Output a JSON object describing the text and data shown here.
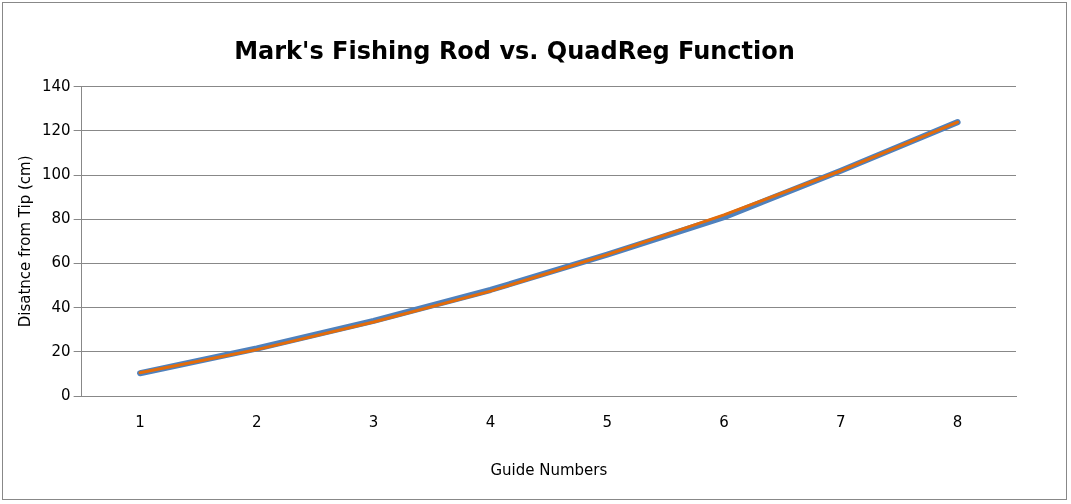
{
  "chart_data": {
    "type": "line",
    "title": "Mark's Fishing Rod vs. QuadReg Function",
    "xlabel": "Guide Numbers",
    "ylabel": "Disatnce from Tip (cm)",
    "categories": [
      "1",
      "2",
      "3",
      "4",
      "5",
      "6",
      "7",
      "8"
    ],
    "series": [
      {
        "color": "#4f81bd",
        "values": [
          10.3,
          21.5,
          34,
          48,
          64,
          81,
          102,
          124
        ]
      },
      {
        "color": "#e46c0a",
        "values": [
          10.5,
          21,
          33.5,
          47.5,
          64,
          82,
          102,
          124
        ]
      }
    ],
    "ylim": [
      0,
      140
    ],
    "yticks": [
      0,
      20,
      40,
      60,
      80,
      100,
      120,
      140
    ],
    "grid": "y",
    "legend": false,
    "marker": "none",
    "line_style": "solid"
  }
}
